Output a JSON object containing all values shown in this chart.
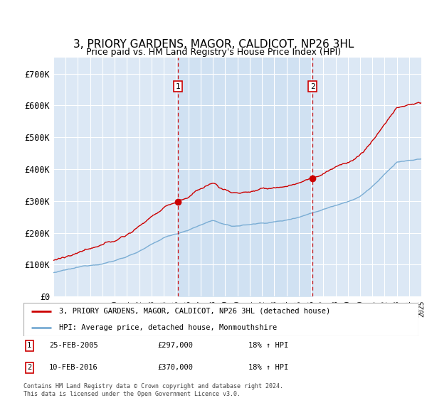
{
  "title": "3, PRIORY GARDENS, MAGOR, CALDICOT, NP26 3HL",
  "subtitle": "Price paid vs. HM Land Registry's House Price Index (HPI)",
  "ylim": [
    0,
    750000
  ],
  "yticks": [
    0,
    100000,
    200000,
    300000,
    400000,
    500000,
    600000,
    700000
  ],
  "ytick_labels": [
    "£0",
    "£100K",
    "£200K",
    "£300K",
    "£400K",
    "£500K",
    "£600K",
    "£700K"
  ],
  "x_start_year": 1995,
  "x_end_year": 2025,
  "hpi_color": "#7aadd4",
  "hpi_fill_color": "#c8ddf0",
  "price_color": "#cc0000",
  "sale1_year": 2005.15,
  "sale1_price": 297000,
  "sale2_year": 2016.12,
  "sale2_price": 370000,
  "legend_label_red": "3, PRIORY GARDENS, MAGOR, CALDICOT, NP26 3HL (detached house)",
  "legend_label_blue": "HPI: Average price, detached house, Monmouthshire",
  "annotation1_label": "1",
  "annotation1_date": "25-FEB-2005",
  "annotation1_price": "£297,000",
  "annotation1_hpi": "18% ↑ HPI",
  "annotation2_label": "2",
  "annotation2_date": "10-FEB-2016",
  "annotation2_price": "£370,000",
  "annotation2_hpi": "18% ↑ HPI",
  "footer": "Contains HM Land Registry data © Crown copyright and database right 2024.\nThis data is licensed under the Open Government Licence v3.0.",
  "background_color": "#dce8f5",
  "grid_color": "#ffffff",
  "title_fontsize": 11,
  "subtitle_fontsize": 9
}
